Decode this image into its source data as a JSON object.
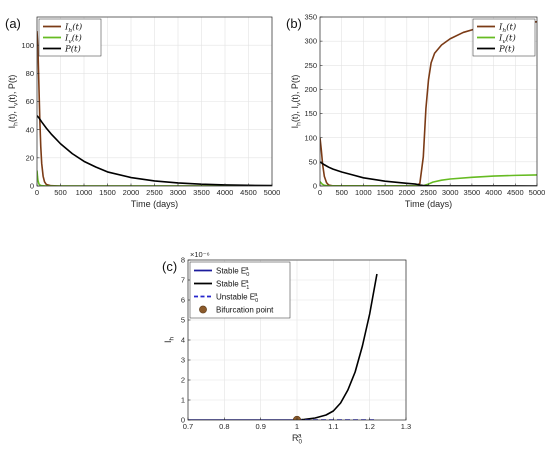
{
  "colors": {
    "Ih": "#7b3b16",
    "Iv": "#66bb22",
    "P": "#000000",
    "stable_E0": "#1c1c9c",
    "stable_E1": "#000000",
    "unstable_E0": "#2626cc",
    "bifurcation": "#8b5a2b"
  },
  "chart_data": [
    {
      "panel_label": "(a)",
      "type": "line",
      "xlabel": "Time (days)",
      "ylabel": "I_h(t), I_v(t), P(t)",
      "xlim": [
        0,
        5000
      ],
      "ylim": [
        0,
        120
      ],
      "xticks": [
        0,
        500,
        1000,
        1500,
        2000,
        2500,
        3000,
        3500,
        4000,
        4500,
        5000
      ],
      "yticks": [
        0,
        20,
        40,
        60,
        80,
        100
      ],
      "grid": true,
      "legend": {
        "position": "top-left",
        "entries": [
          "I_h(t)",
          "I_v(t)",
          "P(t)"
        ]
      },
      "series": [
        {
          "name": "I_h(t)",
          "color_key": "Ih",
          "x": [
            0,
            20,
            40,
            60,
            80,
            100,
            130,
            160,
            200,
            300,
            500,
            5000
          ],
          "y": [
            110,
            98,
            72,
            47,
            28,
            16,
            7,
            3,
            1,
            0.2,
            0,
            0
          ]
        },
        {
          "name": "I_v(t)",
          "color_key": "Iv",
          "x": [
            0,
            10,
            20,
            40,
            70,
            100,
            200,
            5000
          ],
          "y": [
            11,
            7,
            4,
            1.5,
            0.5,
            0.2,
            0,
            0
          ]
        },
        {
          "name": "P(t)",
          "color_key": "P",
          "x": [
            0,
            50,
            100,
            200,
            300,
            400,
            500,
            750,
            1000,
            1250,
            1500,
            2000,
            2500,
            3000,
            3500,
            4000,
            4500,
            5000
          ],
          "y": [
            50,
            48,
            45.5,
            41,
            37,
            33.5,
            30,
            23,
            17.5,
            13.5,
            10,
            6,
            3.6,
            2.2,
            1.3,
            0.8,
            0.5,
            0.3
          ]
        }
      ]
    },
    {
      "panel_label": "(b)",
      "type": "line",
      "xlabel": "Time (days)",
      "ylabel": "I_h(t), I_v(t), P(t)",
      "xlim": [
        0,
        5000
      ],
      "ylim": [
        0,
        350
      ],
      "xticks": [
        0,
        500,
        1000,
        1500,
        2000,
        2500,
        3000,
        3500,
        4000,
        4500,
        5000
      ],
      "yticks": [
        0,
        50,
        100,
        150,
        200,
        250,
        300,
        350
      ],
      "grid": true,
      "legend": {
        "position": "top-right",
        "entries": [
          "I_h(t)",
          "I_v(t)",
          "P(t)"
        ]
      },
      "series": [
        {
          "name": "I_h(t)",
          "color_key": "Ih",
          "x": [
            0,
            30,
            60,
            100,
            150,
            200,
            300,
            2200,
            2300,
            2380,
            2440,
            2500,
            2560,
            2640,
            2800,
            3000,
            3300,
            3600,
            4000,
            4500,
            5000
          ],
          "y": [
            100,
            75,
            45,
            20,
            7,
            2,
            0.3,
            0.3,
            5,
            60,
            160,
            220,
            255,
            275,
            292,
            305,
            318,
            326,
            333,
            338,
            340
          ]
        },
        {
          "name": "I_v(t)",
          "color_key": "Iv",
          "x": [
            0,
            50,
            100,
            200,
            2300,
            2400,
            2500,
            2600,
            2800,
            3000,
            3500,
            4000,
            4500,
            5000
          ],
          "y": [
            9,
            4,
            1.5,
            0.2,
            0.2,
            1,
            4,
            8,
            12,
            14.5,
            18,
            20.5,
            22,
            23
          ]
        },
        {
          "name": "P(t)",
          "color_key": "P",
          "x": [
            0,
            100,
            200,
            300,
            500,
            750,
            1000,
            1500,
            2000,
            2200,
            2300,
            2400,
            2500,
            3000,
            5000
          ],
          "y": [
            50,
            44,
            39,
            35,
            29,
            23,
            17,
            10,
            5.5,
            4,
            2,
            0.8,
            0.3,
            0.1,
            0
          ]
        }
      ]
    },
    {
      "panel_label": "(c)",
      "type": "line",
      "xlabel": "R_0^a",
      "ylabel": "I_h",
      "y_exponent_label": "×10⁻⁶",
      "xlim": [
        0.7,
        1.3
      ],
      "ylim": [
        0,
        8
      ],
      "xticks": [
        0.7,
        0.8,
        0.9,
        1,
        1.1,
        1.2,
        1.3
      ],
      "yticks": [
        0,
        1,
        2,
        3,
        4,
        5,
        6,
        7,
        8
      ],
      "grid": true,
      "legend": {
        "position": "top-left",
        "entries": [
          "Stable E_0^a",
          "Stable E_1^a",
          "Unstable E_0^a",
          "Bifurcation point"
        ]
      },
      "series": [
        {
          "name": "Stable E_0^a",
          "style": "solid",
          "color_key": "stable_E0",
          "x": [
            0.7,
            1.0
          ],
          "y": [
            0,
            0
          ]
        },
        {
          "name": "Stable E_1^a",
          "style": "solid",
          "color_key": "stable_E1",
          "x": [
            1.0,
            1.02,
            1.05,
            1.08,
            1.1,
            1.12,
            1.14,
            1.16,
            1.18,
            1.2,
            1.22
          ],
          "y": [
            0,
            0.03,
            0.1,
            0.25,
            0.45,
            0.85,
            1.5,
            2.4,
            3.7,
            5.3,
            7.3
          ]
        },
        {
          "name": "Unstable E_0^a",
          "style": "dashed",
          "color_key": "unstable_E0",
          "x": [
            1.0,
            1.22
          ],
          "y": [
            0,
            0
          ]
        },
        {
          "name": "Bifurcation point",
          "style": "point",
          "color_key": "bifurcation",
          "x": [
            1.0
          ],
          "y": [
            0
          ]
        }
      ]
    }
  ]
}
